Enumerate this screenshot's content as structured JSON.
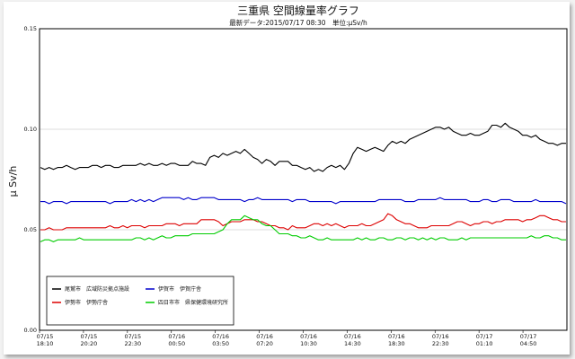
{
  "chart_data": {
    "type": "line",
    "title": "三重県 空間線量率グラフ",
    "subtitle": "最新データ:2015/07/17 08:30　単位:μSv/h",
    "ylabel": "μ Sv/h",
    "ylim": [
      0.0,
      0.15
    ],
    "yticks": [
      "0.00",
      "0.05",
      "0.10",
      "0.15"
    ],
    "grid": true,
    "legend_position": "bottom-left",
    "x_tick_labels": [
      {
        "date": "07/15",
        "time": "18:10"
      },
      {
        "date": "07/15",
        "time": "20:20"
      },
      {
        "date": "07/15",
        "time": "22:30"
      },
      {
        "date": "07/16",
        "time": "00:50"
      },
      {
        "date": "07/16",
        "time": "03:50"
      },
      {
        "date": "07/16",
        "time": "07:20"
      },
      {
        "date": "07/16",
        "time": "10:30"
      },
      {
        "date": "07/16",
        "time": "14:30"
      },
      {
        "date": "07/16",
        "time": "18:30"
      },
      {
        "date": "07/16",
        "time": "22:30"
      },
      {
        "date": "07/17",
        "time": "01:10"
      },
      {
        "date": "07/17",
        "time": "04:50"
      }
    ],
    "series": [
      {
        "name": "尾鷲市　広域防災拠点施設",
        "color": "#000000",
        "values": [
          0.081,
          0.08,
          0.081,
          0.08,
          0.081,
          0.081,
          0.082,
          0.081,
          0.08,
          0.081,
          0.081,
          0.081,
          0.082,
          0.082,
          0.081,
          0.082,
          0.082,
          0.081,
          0.081,
          0.082,
          0.082,
          0.082,
          0.082,
          0.083,
          0.082,
          0.083,
          0.082,
          0.082,
          0.083,
          0.082,
          0.083,
          0.083,
          0.082,
          0.082,
          0.082,
          0.084,
          0.083,
          0.083,
          0.082,
          0.086,
          0.087,
          0.086,
          0.088,
          0.087,
          0.088,
          0.089,
          0.088,
          0.09,
          0.088,
          0.086,
          0.085,
          0.083,
          0.085,
          0.084,
          0.082,
          0.084,
          0.084,
          0.084,
          0.082,
          0.082,
          0.081,
          0.08,
          0.081,
          0.079,
          0.08,
          0.079,
          0.081,
          0.082,
          0.081,
          0.082,
          0.08,
          0.083,
          0.088,
          0.091,
          0.09,
          0.089,
          0.09,
          0.091,
          0.09,
          0.089,
          0.092,
          0.094,
          0.093,
          0.094,
          0.093,
          0.095,
          0.096,
          0.097,
          0.098,
          0.099,
          0.1,
          0.101,
          0.101,
          0.1,
          0.101,
          0.099,
          0.098,
          0.097,
          0.097,
          0.098,
          0.097,
          0.097,
          0.098,
          0.099,
          0.102,
          0.102,
          0.101,
          0.103,
          0.101,
          0.1,
          0.099,
          0.097,
          0.097,
          0.096,
          0.097,
          0.095,
          0.094,
          0.093,
          0.093,
          0.092,
          0.093,
          0.093
        ]
      },
      {
        "name": "伊勢市　伊勢庁舎",
        "color": "#dd0000",
        "values": [
          0.05,
          0.05,
          0.051,
          0.05,
          0.05,
          0.05,
          0.051,
          0.051,
          0.051,
          0.051,
          0.051,
          0.051,
          0.051,
          0.051,
          0.051,
          0.051,
          0.052,
          0.051,
          0.051,
          0.052,
          0.051,
          0.052,
          0.052,
          0.052,
          0.051,
          0.052,
          0.052,
          0.052,
          0.052,
          0.053,
          0.053,
          0.053,
          0.052,
          0.053,
          0.053,
          0.053,
          0.053,
          0.055,
          0.055,
          0.055,
          0.055,
          0.054,
          0.052,
          0.053,
          0.054,
          0.054,
          0.054,
          0.055,
          0.055,
          0.055,
          0.054,
          0.054,
          0.053,
          0.052,
          0.052,
          0.051,
          0.051,
          0.05,
          0.052,
          0.051,
          0.051,
          0.051,
          0.052,
          0.053,
          0.053,
          0.052,
          0.053,
          0.052,
          0.053,
          0.052,
          0.051,
          0.052,
          0.052,
          0.052,
          0.053,
          0.052,
          0.052,
          0.053,
          0.054,
          0.055,
          0.058,
          0.057,
          0.055,
          0.054,
          0.053,
          0.053,
          0.052,
          0.051,
          0.051,
          0.051,
          0.052,
          0.052,
          0.052,
          0.052,
          0.052,
          0.053,
          0.054,
          0.054,
          0.053,
          0.052,
          0.053,
          0.053,
          0.054,
          0.054,
          0.053,
          0.054,
          0.054,
          0.055,
          0.055,
          0.055,
          0.055,
          0.054,
          0.055,
          0.055,
          0.056,
          0.057,
          0.057,
          0.056,
          0.055,
          0.055,
          0.054,
          0.054
        ]
      },
      {
        "name": "伊賀市　伊賀庁舎",
        "color": "#0000cc",
        "values": [
          0.064,
          0.064,
          0.063,
          0.064,
          0.064,
          0.064,
          0.063,
          0.064,
          0.064,
          0.064,
          0.064,
          0.064,
          0.064,
          0.064,
          0.064,
          0.064,
          0.063,
          0.064,
          0.064,
          0.064,
          0.064,
          0.065,
          0.064,
          0.065,
          0.064,
          0.065,
          0.064,
          0.065,
          0.066,
          0.066,
          0.066,
          0.066,
          0.066,
          0.065,
          0.066,
          0.065,
          0.065,
          0.066,
          0.066,
          0.066,
          0.066,
          0.065,
          0.065,
          0.065,
          0.065,
          0.065,
          0.065,
          0.064,
          0.065,
          0.065,
          0.066,
          0.065,
          0.065,
          0.065,
          0.065,
          0.065,
          0.065,
          0.065,
          0.064,
          0.065,
          0.065,
          0.065,
          0.064,
          0.064,
          0.064,
          0.064,
          0.064,
          0.064,
          0.063,
          0.064,
          0.064,
          0.064,
          0.064,
          0.064,
          0.064,
          0.064,
          0.064,
          0.064,
          0.065,
          0.065,
          0.065,
          0.065,
          0.065,
          0.065,
          0.064,
          0.064,
          0.064,
          0.065,
          0.065,
          0.065,
          0.065,
          0.065,
          0.066,
          0.065,
          0.065,
          0.065,
          0.065,
          0.065,
          0.065,
          0.064,
          0.064,
          0.064,
          0.065,
          0.065,
          0.064,
          0.064,
          0.065,
          0.065,
          0.065,
          0.064,
          0.064,
          0.064,
          0.064,
          0.064,
          0.065,
          0.064,
          0.064,
          0.064,
          0.064,
          0.064,
          0.064,
          0.063
        ]
      },
      {
        "name": "四日市市　県保健環境研究所",
        "color": "#00cc00",
        "values": [
          0.044,
          0.045,
          0.045,
          0.044,
          0.045,
          0.045,
          0.045,
          0.045,
          0.045,
          0.046,
          0.045,
          0.045,
          0.045,
          0.045,
          0.045,
          0.045,
          0.045,
          0.045,
          0.045,
          0.045,
          0.045,
          0.045,
          0.046,
          0.046,
          0.045,
          0.046,
          0.045,
          0.046,
          0.047,
          0.046,
          0.046,
          0.047,
          0.047,
          0.047,
          0.047,
          0.048,
          0.048,
          0.048,
          0.048,
          0.048,
          0.048,
          0.049,
          0.05,
          0.053,
          0.055,
          0.055,
          0.055,
          0.057,
          0.056,
          0.055,
          0.055,
          0.053,
          0.052,
          0.052,
          0.05,
          0.048,
          0.048,
          0.048,
          0.047,
          0.047,
          0.046,
          0.046,
          0.047,
          0.046,
          0.045,
          0.045,
          0.046,
          0.045,
          0.045,
          0.045,
          0.045,
          0.045,
          0.045,
          0.046,
          0.045,
          0.046,
          0.045,
          0.045,
          0.046,
          0.046,
          0.045,
          0.045,
          0.046,
          0.046,
          0.045,
          0.046,
          0.046,
          0.045,
          0.046,
          0.045,
          0.046,
          0.045,
          0.046,
          0.046,
          0.045,
          0.045,
          0.045,
          0.046,
          0.045,
          0.046,
          0.046,
          0.046,
          0.046,
          0.046,
          0.046,
          0.046,
          0.046,
          0.046,
          0.046,
          0.046,
          0.046,
          0.046,
          0.046,
          0.047,
          0.046,
          0.046,
          0.047,
          0.047,
          0.046,
          0.046,
          0.045,
          0.045
        ]
      }
    ]
  }
}
